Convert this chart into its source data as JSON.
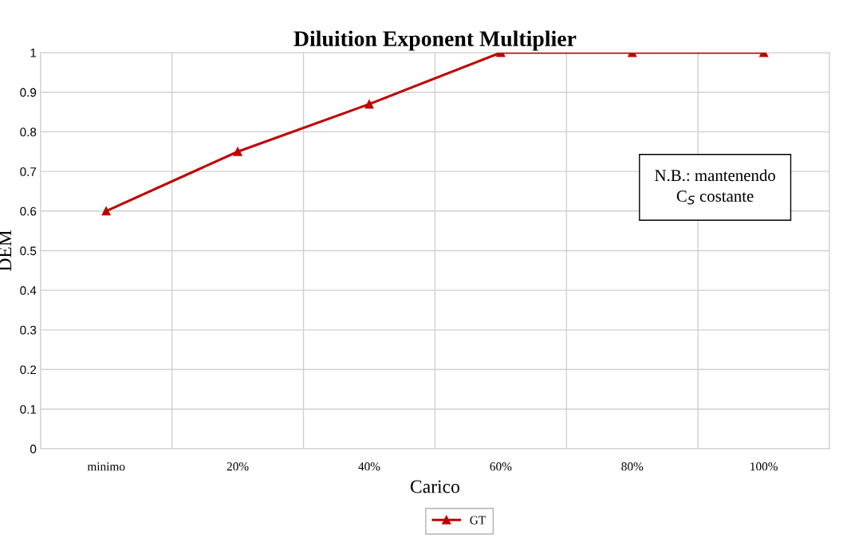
{
  "chart_data": {
    "type": "line",
    "title": "Diluition Exponent Multiplier",
    "xlabel": "Carico",
    "ylabel": "DEM",
    "categories": [
      "minimo",
      "20%",
      "40%",
      "60%",
      "80%",
      "100%"
    ],
    "series": [
      {
        "name": "GT",
        "color": "#c00000",
        "values": [
          0.6,
          0.75,
          0.87,
          1,
          1,
          1
        ]
      }
    ],
    "ylim": [
      0,
      1
    ],
    "yticks": [
      0,
      0.1,
      0.2,
      0.3,
      0.4,
      0.5,
      0.6,
      0.7,
      0.8,
      0.9,
      1
    ],
    "grid": true,
    "legend": "bottom",
    "marker": "triangle",
    "line_style": "solid",
    "annotations": [
      "N.B.: mantenendo\nC$_{S}$ costante"
    ]
  }
}
